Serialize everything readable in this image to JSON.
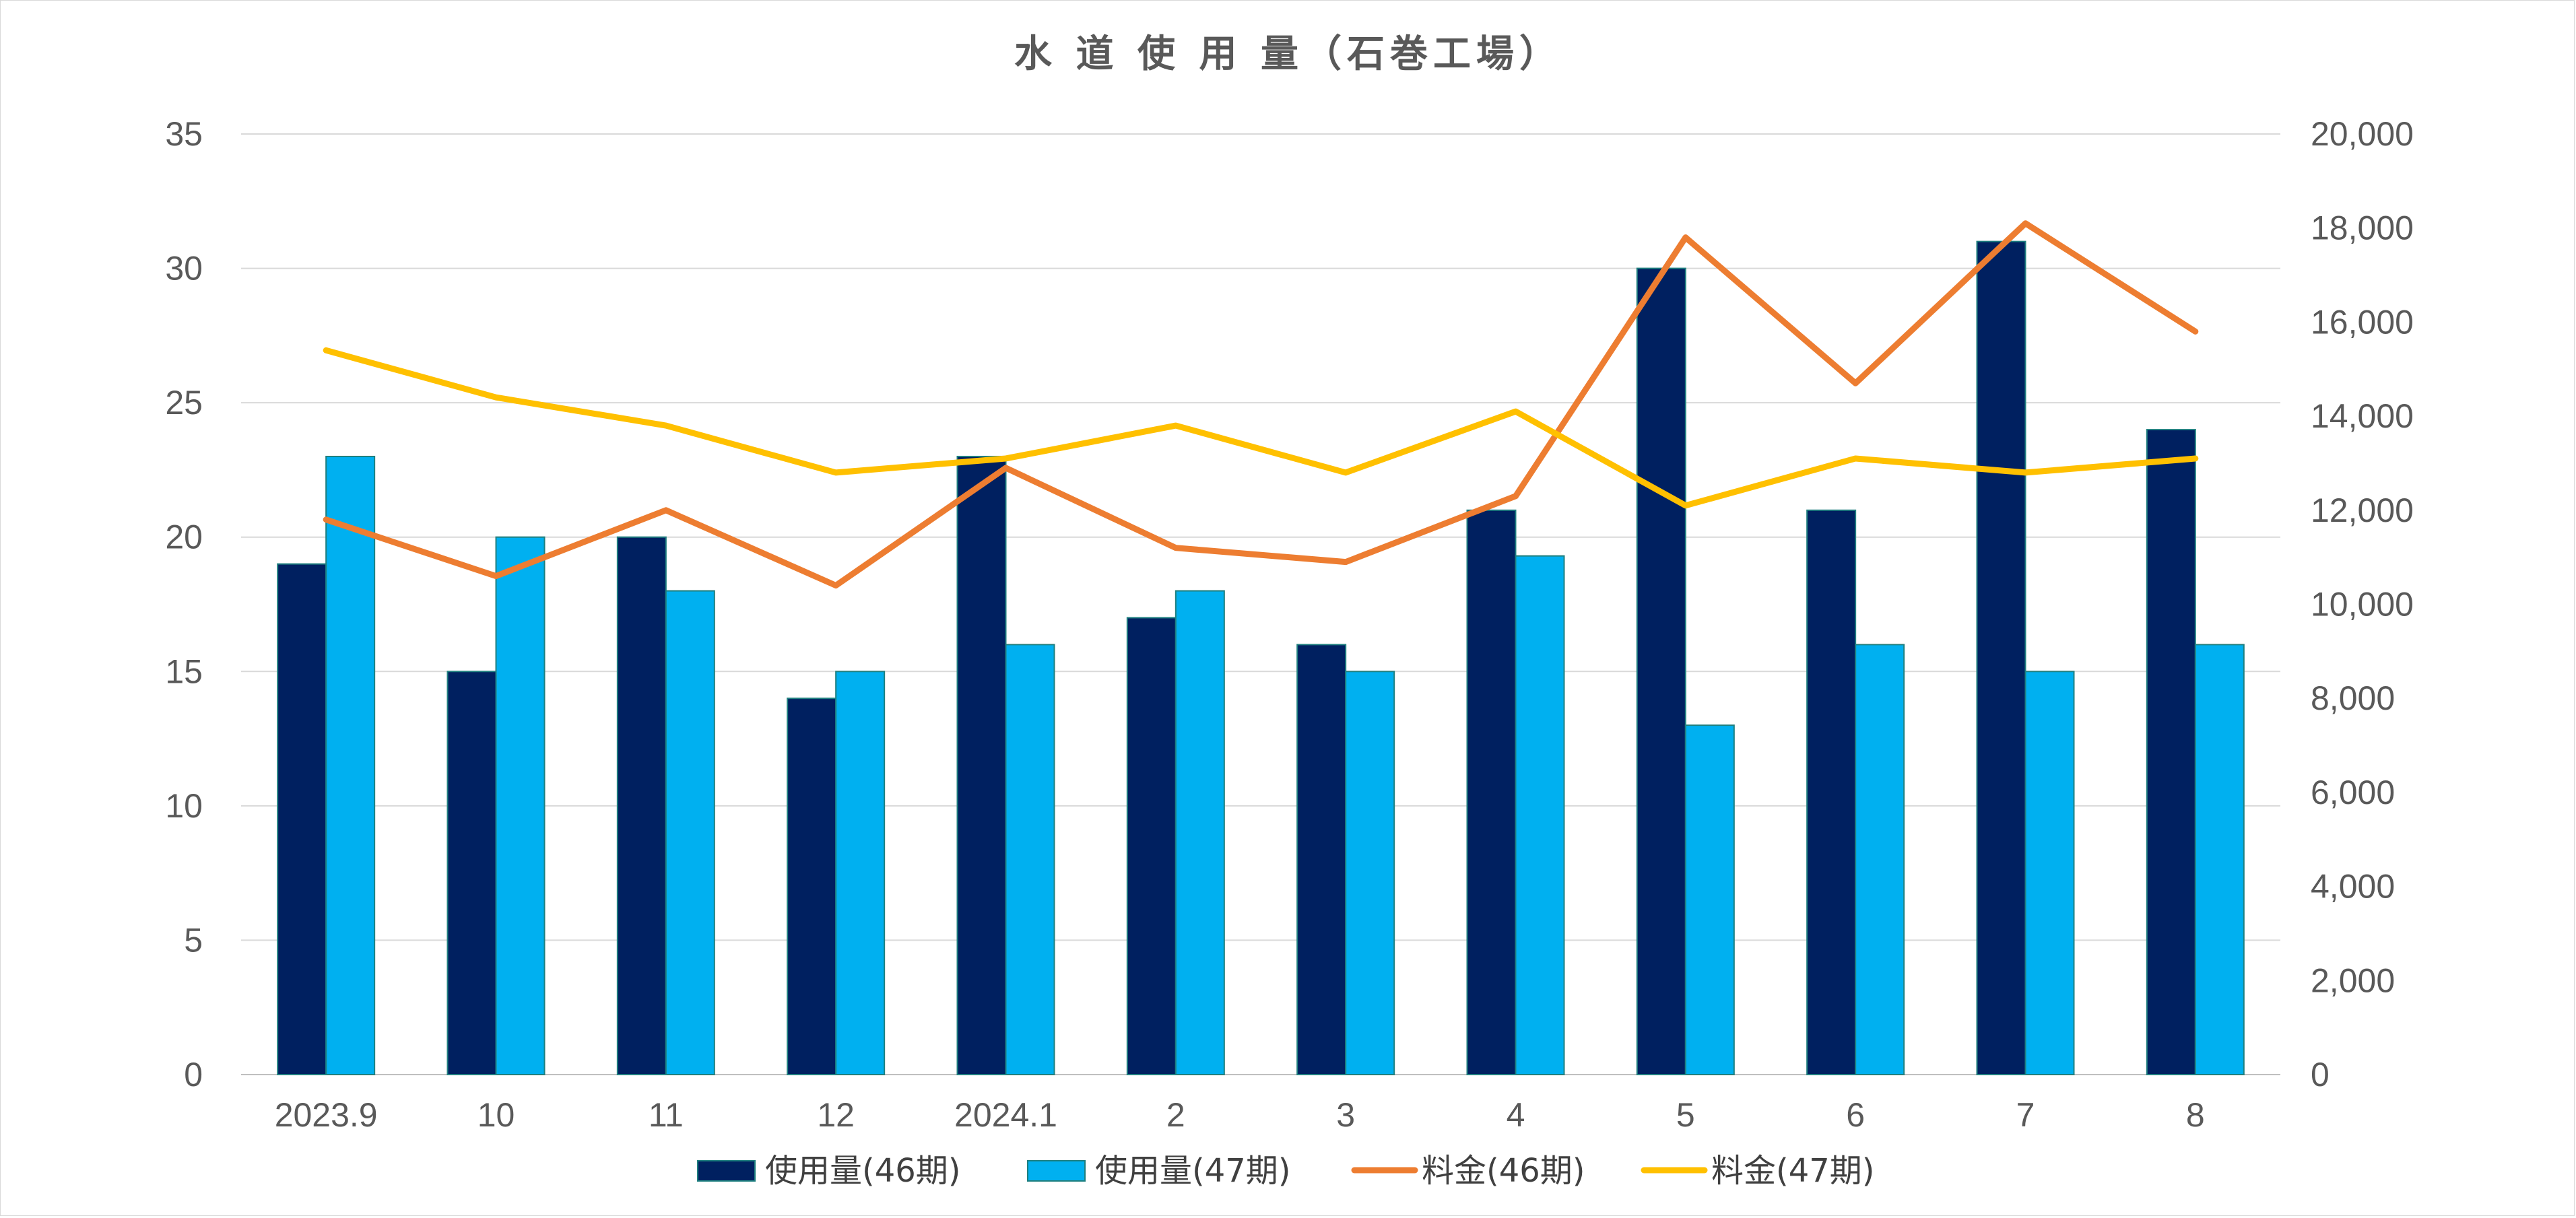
{
  "chart_data": {
    "type": "bar",
    "title": "水 道 使 用 量（石巻工場）",
    "categories": [
      "2023.9",
      "10",
      "11",
      "12",
      "2024.1",
      "2",
      "3",
      "4",
      "5",
      "6",
      "7",
      "8"
    ],
    "y_left": {
      "min": 0,
      "max": 35,
      "step": 5,
      "ticks": [
        "0",
        "5",
        "10",
        "15",
        "20",
        "25",
        "30",
        "35"
      ]
    },
    "y_right": {
      "min": 0,
      "max": 20000,
      "step": 2000,
      "ticks": [
        "0",
        "2,000",
        "4,000",
        "6,000",
        "8,000",
        "10,000",
        "12,000",
        "14,000",
        "16,000",
        "18,000",
        "20,000"
      ]
    },
    "grid": true,
    "legend_position": "bottom",
    "series": [
      {
        "name": "使用量(46期)",
        "kind": "bar",
        "axis": "left",
        "color": "#002060",
        "values": [
          19,
          15,
          20,
          14,
          23,
          17,
          16,
          21,
          30,
          21,
          31,
          24
        ]
      },
      {
        "name": "使用量(47期)",
        "kind": "bar",
        "axis": "left",
        "color": "#00b0f0",
        "values": [
          23,
          20,
          18,
          15,
          16,
          18,
          15,
          19.3,
          13,
          16,
          15,
          16
        ]
      },
      {
        "name": "料金(46期)",
        "kind": "line",
        "axis": "right",
        "color": "#ed7d31",
        "values": [
          11800,
          10600,
          12000,
          10400,
          12900,
          11200,
          10900,
          12300,
          17800,
          14700,
          18100,
          15800
        ]
      },
      {
        "name": "料金(47期)",
        "kind": "line",
        "axis": "right",
        "color": "#ffc000",
        "values": [
          15400,
          14400,
          13800,
          12800,
          13100,
          13800,
          12800,
          14100,
          12100,
          13100,
          12800,
          13100
        ]
      }
    ]
  }
}
